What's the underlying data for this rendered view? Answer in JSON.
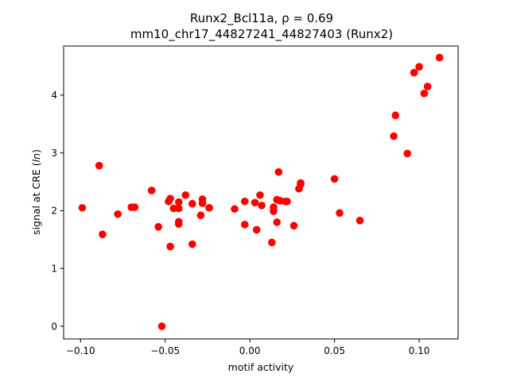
{
  "chart_data": {
    "type": "scatter",
    "title": [
      "Runx2_Bcl11a, ρ = 0.69",
      "mm10_chr17_44827241_44827403 (Runx2)"
    ],
    "xlabel": "motif activity",
    "ylabel": "signal at CRE (ln)",
    "xlim": [
      -0.11,
      0.123
    ],
    "ylim": [
      -0.22,
      4.85
    ],
    "xticks": [
      -0.1,
      -0.05,
      0.0,
      0.05,
      0.1
    ],
    "xtick_labels": [
      "−0.10",
      "−0.05",
      "0.00",
      "0.05",
      "0.10"
    ],
    "yticks": [
      0,
      1,
      2,
      3,
      4
    ],
    "ytick_labels": [
      "0",
      "1",
      "2",
      "3",
      "4"
    ],
    "grid": false,
    "marker_color": "#ff0000",
    "points": [
      {
        "x": -0.099,
        "y": 2.05
      },
      {
        "x": -0.089,
        "y": 2.78
      },
      {
        "x": -0.087,
        "y": 1.59
      },
      {
        "x": -0.078,
        "y": 1.94
      },
      {
        "x": -0.07,
        "y": 2.06
      },
      {
        "x": -0.068,
        "y": 2.06
      },
      {
        "x": -0.058,
        "y": 2.35
      },
      {
        "x": -0.054,
        "y": 1.72
      },
      {
        "x": -0.052,
        "y": 0.0
      },
      {
        "x": -0.048,
        "y": 2.16
      },
      {
        "x": -0.047,
        "y": 2.21
      },
      {
        "x": -0.047,
        "y": 1.38
      },
      {
        "x": -0.045,
        "y": 2.04
      },
      {
        "x": -0.042,
        "y": 2.15
      },
      {
        "x": -0.042,
        "y": 2.04
      },
      {
        "x": -0.042,
        "y": 1.81
      },
      {
        "x": -0.042,
        "y": 1.77
      },
      {
        "x": -0.038,
        "y": 2.27
      },
      {
        "x": -0.034,
        "y": 2.12
      },
      {
        "x": -0.034,
        "y": 1.42
      },
      {
        "x": -0.029,
        "y": 1.92
      },
      {
        "x": -0.028,
        "y": 2.2
      },
      {
        "x": -0.028,
        "y": 2.13
      },
      {
        "x": -0.024,
        "y": 2.05
      },
      {
        "x": -0.009,
        "y": 2.03
      },
      {
        "x": -0.003,
        "y": 2.16
      },
      {
        "x": -0.003,
        "y": 1.76
      },
      {
        "x": 0.003,
        "y": 2.14
      },
      {
        "x": 0.004,
        "y": 1.67
      },
      {
        "x": 0.006,
        "y": 2.27
      },
      {
        "x": 0.007,
        "y": 2.09
      },
      {
        "x": 0.013,
        "y": 1.45
      },
      {
        "x": 0.014,
        "y": 2.06
      },
      {
        "x": 0.014,
        "y": 1.99
      },
      {
        "x": 0.016,
        "y": 2.19
      },
      {
        "x": 0.016,
        "y": 1.8
      },
      {
        "x": 0.017,
        "y": 2.67
      },
      {
        "x": 0.018,
        "y": 2.17
      },
      {
        "x": 0.021,
        "y": 2.16
      },
      {
        "x": 0.022,
        "y": 2.16
      },
      {
        "x": 0.026,
        "y": 1.74
      },
      {
        "x": 0.029,
        "y": 2.38
      },
      {
        "x": 0.03,
        "y": 2.46
      },
      {
        "x": 0.03,
        "y": 2.48
      },
      {
        "x": 0.05,
        "y": 2.55
      },
      {
        "x": 0.053,
        "y": 1.96
      },
      {
        "x": 0.065,
        "y": 1.83
      },
      {
        "x": 0.085,
        "y": 3.29
      },
      {
        "x": 0.086,
        "y": 3.65
      },
      {
        "x": 0.093,
        "y": 2.99
      },
      {
        "x": 0.097,
        "y": 4.39
      },
      {
        "x": 0.1,
        "y": 4.49
      },
      {
        "x": 0.103,
        "y": 4.03
      },
      {
        "x": 0.105,
        "y": 4.15
      },
      {
        "x": 0.112,
        "y": 4.65
      }
    ]
  }
}
